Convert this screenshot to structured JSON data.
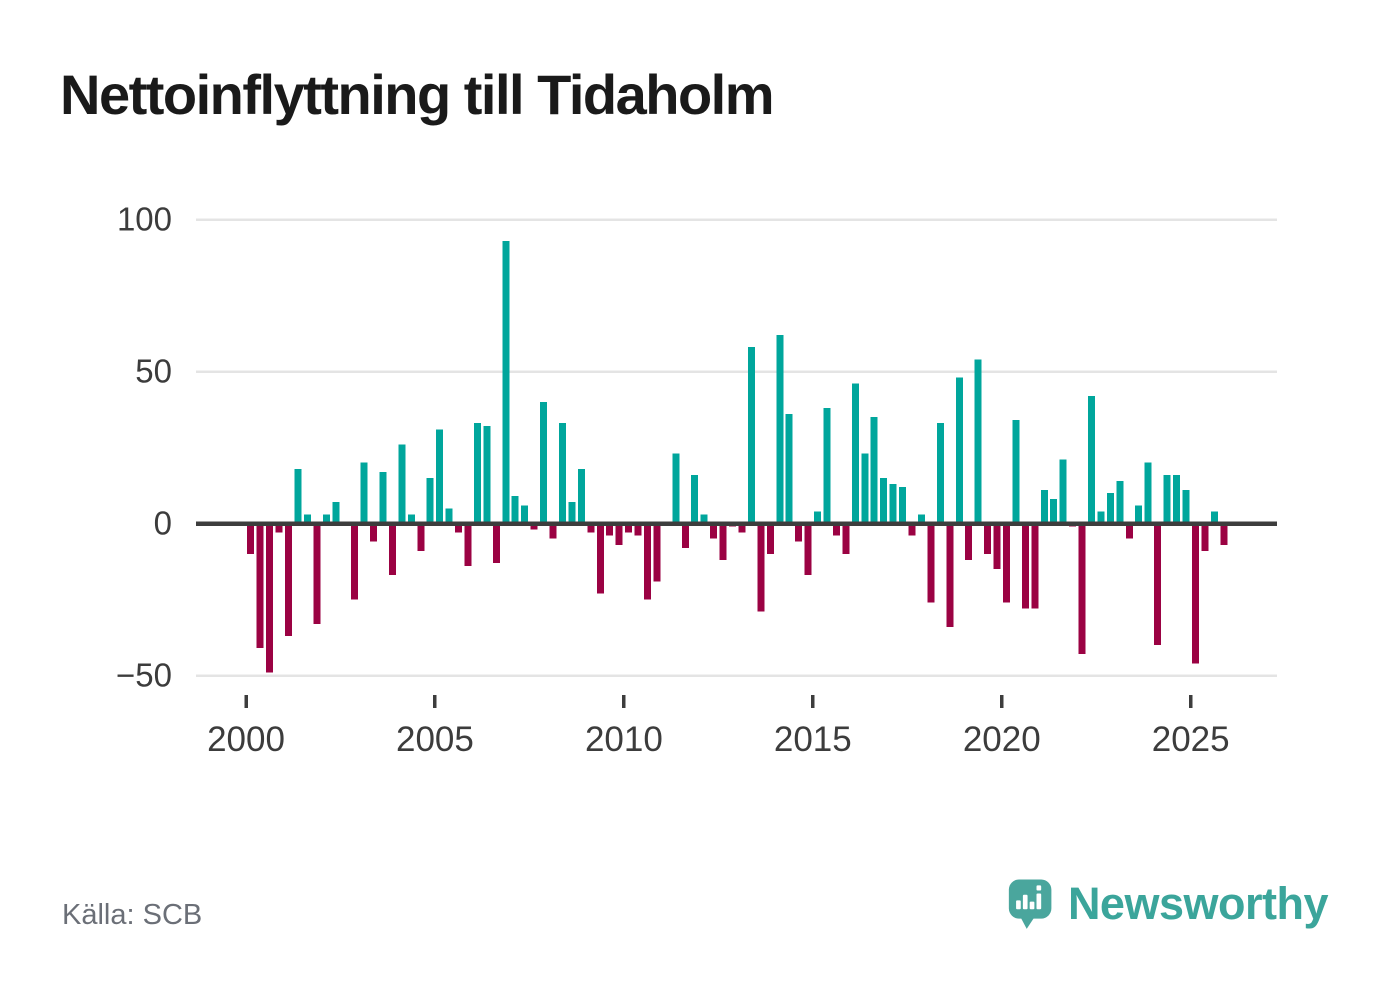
{
  "title": "Nettoinflyttning till Tidaholm",
  "source": "Källa: SCB",
  "branding": {
    "logo_text": "Newsworthy",
    "logo_icon": "speech-bubble-bar-chart-icon"
  },
  "colors": {
    "background": "#ffffff",
    "positive_bar": "#00a69c",
    "negative_bar": "#9b0243",
    "zero_axis": "#3d3d3d",
    "gridline": "#e4e4e4",
    "axis_label": "#3c3c3c",
    "title_text": "#1a1a1a",
    "source_text": "#6b6f77",
    "brand_teal": "#3ba59b",
    "logo_bubble": "#4aa69d"
  },
  "chart_data": {
    "type": "bar",
    "title": "Nettoinflyttning till Tidaholm",
    "frequency": "quarterly",
    "legend": "none",
    "grid": "horizontal",
    "y_ticks": [
      100,
      50,
      0,
      -50
    ],
    "y_tick_labels": [
      "100",
      "50",
      "0",
      "−50"
    ],
    "x_ticks": [
      2000,
      2005,
      2010,
      2015,
      2020,
      2025
    ],
    "x_tick_labels": [
      "2000",
      "2005",
      "2010",
      "2015",
      "2020",
      "2025"
    ],
    "ylim": [
      -58,
      107
    ],
    "x": [
      "2000Q1",
      "2000Q2",
      "2000Q3",
      "2000Q4",
      "2001Q1",
      "2001Q2",
      "2001Q3",
      "2001Q4",
      "2002Q1",
      "2002Q2",
      "2002Q3",
      "2002Q4",
      "2003Q1",
      "2003Q2",
      "2003Q3",
      "2003Q4",
      "2004Q1",
      "2004Q2",
      "2004Q3",
      "2004Q4",
      "2005Q1",
      "2005Q2",
      "2005Q3",
      "2005Q4",
      "2006Q1",
      "2006Q2",
      "2006Q3",
      "2006Q4",
      "2007Q1",
      "2007Q2",
      "2007Q3",
      "2007Q4",
      "2008Q1",
      "2008Q2",
      "2008Q3",
      "2008Q4",
      "2009Q1",
      "2009Q2",
      "2009Q3",
      "2009Q4",
      "2010Q1",
      "2010Q2",
      "2010Q3",
      "2010Q4",
      "2011Q1",
      "2011Q2",
      "2011Q3",
      "2011Q4",
      "2012Q1",
      "2012Q2",
      "2012Q3",
      "2012Q4",
      "2013Q1",
      "2013Q2",
      "2013Q3",
      "2013Q4",
      "2014Q1",
      "2014Q2",
      "2014Q3",
      "2014Q4",
      "2015Q1",
      "2015Q2",
      "2015Q3",
      "2015Q4",
      "2016Q1",
      "2016Q2",
      "2016Q3",
      "2016Q4",
      "2017Q1",
      "2017Q2",
      "2017Q3",
      "2017Q4",
      "2018Q1",
      "2018Q2",
      "2018Q3",
      "2018Q4",
      "2019Q1",
      "2019Q2",
      "2019Q3",
      "2019Q4",
      "2020Q1",
      "2020Q2",
      "2020Q3",
      "2020Q4",
      "2021Q1",
      "2021Q2",
      "2021Q3",
      "2021Q4",
      "2022Q1",
      "2022Q2",
      "2022Q3",
      "2022Q4",
      "2023Q1",
      "2023Q2",
      "2023Q3",
      "2023Q4",
      "2024Q1",
      "2024Q2",
      "2024Q3",
      "2024Q4",
      "2025Q1",
      "2025Q2",
      "2025Q3",
      "2025Q4"
    ],
    "values": [
      -10,
      -41,
      -49,
      -3,
      -37,
      18,
      3,
      -33,
      3,
      7,
      0,
      -25,
      20,
      -6,
      17,
      -17,
      26,
      3,
      -9,
      15,
      31,
      5,
      -3,
      -14,
      33,
      32,
      -13,
      93,
      9,
      6,
      -2,
      40,
      -5,
      33,
      7,
      18,
      -3,
      -23,
      -4,
      -7,
      -3,
      -4,
      -25,
      -19,
      0,
      23,
      -8,
      16,
      3,
      -5,
      -12,
      -1,
      -3,
      58,
      -29,
      -10,
      62,
      36,
      -6,
      -17,
      4,
      38,
      -4,
      -10,
      46,
      23,
      35,
      15,
      13,
      12,
      -4,
      3,
      -26,
      33,
      -34,
      48,
      -12,
      54,
      -10,
      -15,
      -26,
      34,
      -28,
      -28,
      11,
      8,
      21,
      -1,
      -43,
      42,
      4,
      10,
      14,
      -5,
      6,
      20,
      -40,
      16,
      16,
      11,
      -46,
      -9,
      4,
      -7
    ]
  }
}
